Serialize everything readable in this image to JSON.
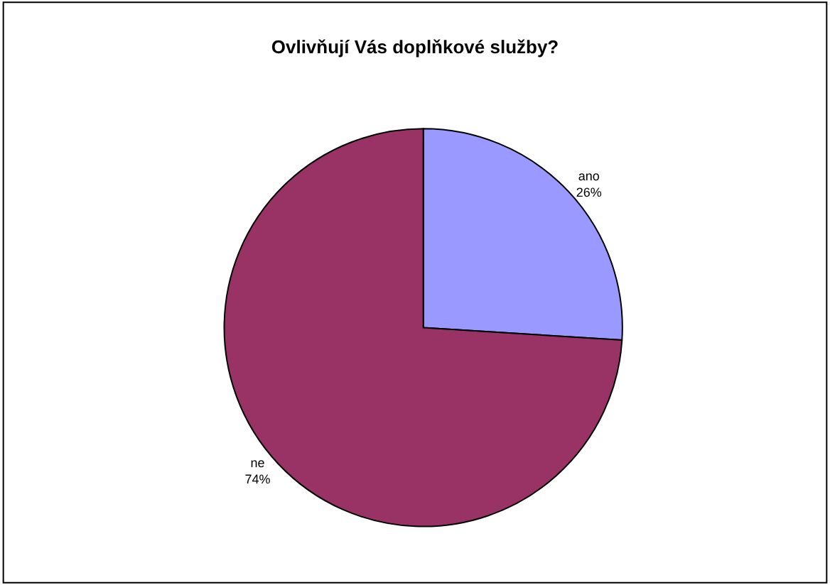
{
  "chart_data": {
    "type": "pie",
    "title": "Ovlivňují Vás doplňkové služby?",
    "categories": [
      "ano",
      "ne"
    ],
    "values": [
      26,
      74
    ],
    "value_labels": [
      "26%",
      "74%"
    ],
    "colors": [
      "#9999ff",
      "#993366"
    ],
    "legend": false
  }
}
